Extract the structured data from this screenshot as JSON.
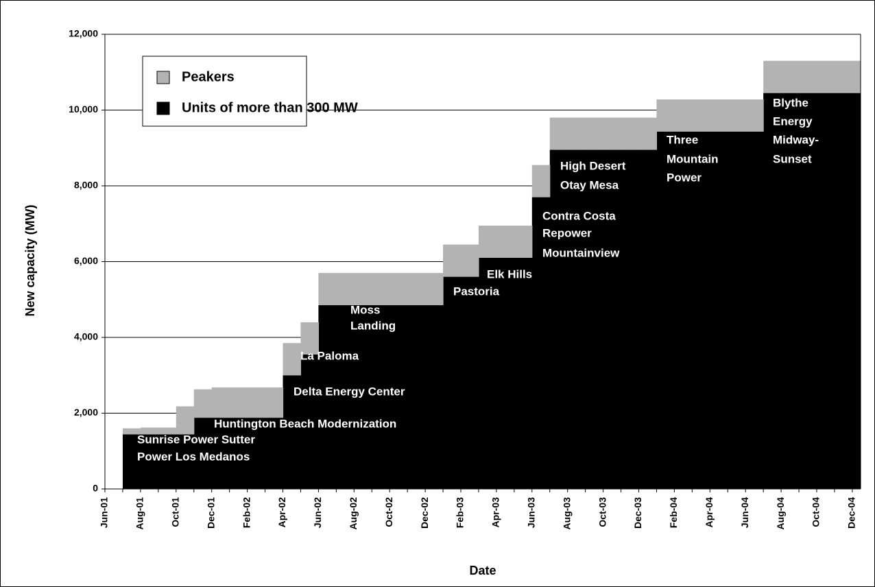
{
  "chart_data": {
    "type": "stacked_step_area",
    "xlabel": "Date",
    "ylabel": "New capacity (MW)",
    "categories": [
      "Jun-01",
      null,
      "Aug-01",
      null,
      "Oct-01",
      null,
      "Dec-01",
      null,
      "Feb-02",
      null,
      "Apr-02",
      null,
      "Jun-02",
      null,
      "Aug-02",
      null,
      "Oct-02",
      null,
      "Dec-02",
      null,
      "Feb-03",
      null,
      "Apr-03",
      null,
      "Jun-03",
      null,
      "Aug-03",
      null,
      "Oct-03",
      null,
      "Dec-03",
      null,
      "Feb-04",
      null,
      "Apr-04",
      null,
      "Jun-04",
      null,
      "Aug-04",
      null,
      "Oct-04",
      null,
      "Dec-04"
    ],
    "series": [
      {
        "name": "Units of more than 300 MW",
        "color": "#000000",
        "values": [
          0,
          1440,
          1440,
          1440,
          1440,
          1880,
          1880,
          1880,
          1880,
          1880,
          3000,
          3550,
          4850,
          4850,
          4850,
          4850,
          4850,
          4850,
          4850,
          5600,
          5600,
          6100,
          6100,
          6100,
          7700,
          8950,
          8950,
          8950,
          8950,
          8950,
          8950,
          9430,
          9430,
          9430,
          9430,
          9430,
          9430,
          10450,
          10450,
          10450,
          10450,
          10450,
          10450
        ]
      },
      {
        "name": "Peakers",
        "color": "#b3b3b3",
        "values": [
          0,
          160,
          180,
          180,
          740,
          750,
          800,
          800,
          800,
          800,
          850,
          850,
          850,
          850,
          850,
          850,
          850,
          850,
          850,
          850,
          850,
          850,
          850,
          850,
          850,
          850,
          850,
          850,
          850,
          850,
          850,
          850,
          850,
          850,
          850,
          850,
          850,
          850,
          850,
          850,
          850,
          850,
          850
        ]
      }
    ],
    "ylim": [
      0,
      12000
    ],
    "yticks": [
      0,
      {
        "value": 2000,
        "label": "2,000"
      },
      {
        "value": 4000,
        "label": "4,000"
      },
      {
        "value": 6000,
        "label": "6,000"
      },
      {
        "value": 8000,
        "label": "8,000"
      },
      {
        "value": 10000,
        "label": "10,000"
      },
      {
        "value": 12000,
        "label": "12,000"
      }
    ],
    "grid": true,
    "legend": "upper left",
    "annotations": [
      [
        "Sunrise Power Sutter",
        "Power Los Medanos"
      ],
      [
        "Huntington Beach Modernization"
      ],
      [
        "Delta Energy Center"
      ],
      [
        "La Paloma"
      ],
      [
        "Moss",
        "Landing"
      ],
      [
        "Pastoria"
      ],
      [
        "Elk Hills"
      ],
      [
        "Contra Costa",
        "Repower",
        "Mountainview"
      ],
      [
        "High Desert",
        "Otay Mesa"
      ],
      [
        "Three",
        "Mountain",
        "Power"
      ],
      [
        "Blythe",
        "Energy",
        "Midway-",
        "Sunset"
      ]
    ]
  }
}
